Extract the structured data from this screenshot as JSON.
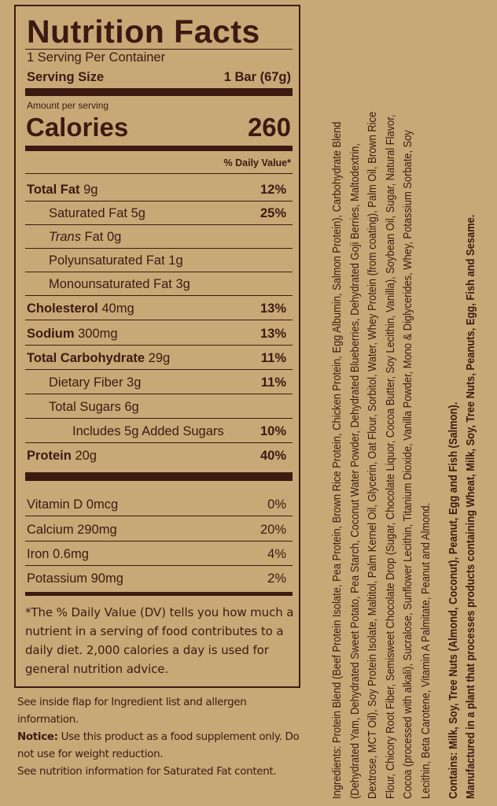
{
  "label": {
    "title": "Nutrition Facts",
    "servings_per_container": "1 Serving Per Container",
    "serving_size_label": "Serving Size",
    "serving_size_value": "1 Bar (67g)",
    "amount_per_serving": "Amount per serving",
    "calories_label": "Calories",
    "calories_value": "260",
    "daily_value_header": "% Daily Value*",
    "nutrients": [
      {
        "name": "Total Fat",
        "amount": "9g",
        "dv": "12%"
      },
      {
        "name": "Saturated Fat",
        "amount": "5g",
        "dv": "25%"
      },
      {
        "name": "Trans",
        "amount": "Fat 0g",
        "dv": ""
      },
      {
        "name": "Polyunsaturated Fat",
        "amount": "1g",
        "dv": ""
      },
      {
        "name": "Monounsaturated Fat",
        "amount": "3g",
        "dv": ""
      },
      {
        "name": "Cholesterol",
        "amount": "40mg",
        "dv": "13%"
      },
      {
        "name": "Sodium",
        "amount": "300mg",
        "dv": "13%"
      },
      {
        "name": "Total Carbohydrate",
        "amount": "29g",
        "dv": "11%"
      },
      {
        "name": "Dietary Fiber",
        "amount": "3g",
        "dv": "11%"
      },
      {
        "name": "Total Sugars",
        "amount": "6g",
        "dv": ""
      },
      {
        "name": "Includes 5g Added Sugars",
        "amount": "",
        "dv": "10%"
      },
      {
        "name": "Protein",
        "amount": "20g",
        "dv": "40%"
      }
    ],
    "vitamins": [
      {
        "name": "Vitamin D 0mcg",
        "dv": "0%"
      },
      {
        "name": "Calcium 290mg",
        "dv": "20%"
      },
      {
        "name": "Iron 0.6mg",
        "dv": "4%"
      },
      {
        "name": "Potassium 90mg",
        "dv": "2%"
      }
    ],
    "footnote": "*The % Daily Value (DV) tells you how much a nutrient in a serving of food contributes to a daily diet. 2,000 calories a day is used for general nutrition advice."
  },
  "notes": {
    "flap": "See inside flap for Ingredient list and allergen information.",
    "notice_label": "Notice:",
    "notice_text": " Use this product as a food supplement only. Do not use for weight reduction.",
    "saturated": "See nutrition information for Saturated Fat content."
  },
  "ingredients": {
    "lines": [
      "Ingredients: Protein Blend (Beef Protein Isolate, Pea Protein, Brown Rice Protein, Chicken Protein, Egg Albumin, Salmon Protein), Carbohydrate Blend",
      "(Dehydrated Yam, Dehydrated Sweet Potato, Pea Starch, Coconut Water Powder, Dehydrated Blueberries, Dehydrated Goji Berries, Maltodextrin,",
      "Dextrose, MCT Oil), Soy Protein Isolate, Maltitol, Palm Kernel Oil, Glycerin, Oat Flour, Sorbitol, Water, Whey Protein (from coating), Palm Oil, Brown Rice",
      "Flour, Chicory Root Fiber, Semisweet Chocolate Drop (Sugar, Chocolate Liquor, Cocoa Butter, Soy Lecithin, Vanilla), Soybean Oil, Sugar, Natural Flavor,",
      "Cocoa (processed with alkali), Sucralose, Sunflower Lecithin, Titanium Dioxide, Vanilla Powder, Mono & Diglycerides, Whey, Potassium Sorbate, Soy",
      "Lecithin, Beta Carotene, Vitamin A Palmitate, Peanut and Almond."
    ],
    "contains": "Contains: Milk, Soy, Tree Nuts (Almond, Coconut), Peanut, Egg and Fish (Salmon).",
    "manufactured": "Manufactured in a plant that processes products containing Wheat, Milk, Soy, Tree Nuts, Peanuts, Egg, Fish and Sesame."
  },
  "colors": {
    "background": "#c9a877",
    "ink": "#3b1a12"
  }
}
